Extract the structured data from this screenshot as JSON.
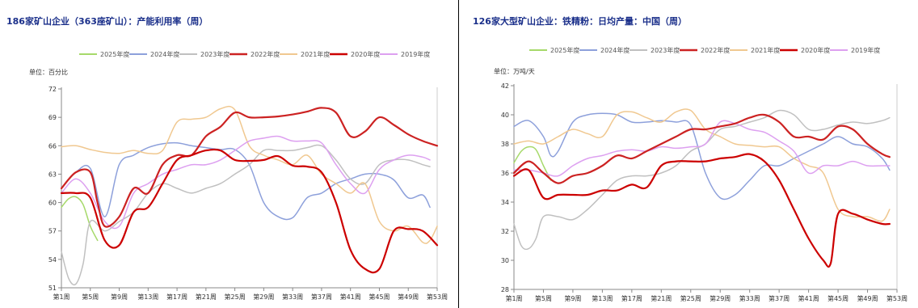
{
  "chart_data": [
    {
      "type": "line",
      "title": "186家矿山企业（363座矿山）：产能利用率（周）",
      "unit": "单位：百分比",
      "ylim": [
        51,
        72
      ],
      "yticks": [
        51,
        54,
        57,
        60,
        63,
        66,
        69,
        72
      ],
      "xlim": [
        1,
        53
      ],
      "xtick_values": [
        1,
        5,
        9,
        13,
        17,
        21,
        25,
        29,
        33,
        37,
        41,
        45,
        49,
        53
      ],
      "xtick_labels": [
        "第1周",
        "第5周",
        "第9周",
        "第13周",
        "第17周",
        "第21周",
        "第25周",
        "第29周",
        "第33周",
        "第37周",
        "第41周",
        "第45周",
        "第49周",
        "第53周"
      ],
      "legend_position": "top",
      "series": [
        {
          "name": "2025年度",
          "color": "#a6d96a",
          "x": [
            1,
            2,
            3,
            4,
            5,
            6
          ],
          "y": [
            59.5,
            60.4,
            60.6,
            59.8,
            57.5,
            56.0
          ]
        },
        {
          "name": "2024年度",
          "color": "#8da0db",
          "x": [
            1,
            3,
            5,
            7,
            9,
            11,
            13,
            15,
            17,
            19,
            21,
            23,
            25,
            27,
            29,
            31,
            33,
            35,
            37,
            39,
            41,
            43,
            45,
            47,
            49,
            51,
            52
          ],
          "y": [
            61.5,
            63.2,
            63.6,
            58.5,
            64.0,
            65.0,
            65.8,
            66.2,
            66.3,
            66.0,
            65.8,
            65.6,
            65.6,
            64.0,
            60.0,
            58.5,
            58.4,
            60.5,
            61.0,
            62.0,
            62.5,
            63.0,
            63.0,
            62.4,
            60.5,
            60.8,
            59.5
          ]
        },
        {
          "name": "2023年度",
          "color": "#c0c0c0",
          "x": [
            1,
            2,
            3,
            4,
            5,
            7,
            9,
            11,
            13,
            15,
            17,
            19,
            21,
            23,
            25,
            27,
            29,
            31,
            33,
            35,
            37,
            39,
            41,
            43,
            45,
            47,
            49,
            51,
            52
          ],
          "y": [
            54.8,
            52.0,
            51.4,
            53.5,
            58.0,
            57.0,
            58.0,
            59.0,
            61.0,
            62.0,
            61.5,
            61.0,
            61.5,
            62.0,
            63.0,
            64.0,
            65.5,
            65.5,
            65.5,
            65.8,
            66.0,
            64.5,
            62.5,
            62.0,
            64.0,
            64.5,
            64.5,
            64.0,
            63.8
          ]
        },
        {
          "name": "2022年度",
          "color": "#cc2222",
          "x": [
            1,
            3,
            5,
            6,
            7,
            9,
            11,
            13,
            15,
            17,
            19,
            21,
            23,
            25,
            27,
            29,
            31,
            33,
            35,
            37,
            39,
            41,
            43,
            45,
            47,
            49,
            51,
            53
          ],
          "y": [
            61.5,
            63.2,
            63.2,
            60.0,
            57.5,
            58.5,
            61.5,
            61.0,
            64.0,
            65.0,
            65.0,
            67.0,
            68.0,
            69.5,
            69.0,
            69.0,
            69.1,
            69.3,
            69.6,
            70.0,
            69.5,
            67.0,
            67.5,
            69.0,
            68.2,
            67.2,
            66.5,
            66.0
          ]
        },
        {
          "name": "2021年度",
          "color": "#f0c890",
          "x": [
            1,
            3,
            5,
            7,
            9,
            11,
            13,
            15,
            17,
            19,
            21,
            23,
            25,
            27,
            29,
            31,
            33,
            35,
            37,
            39,
            41,
            43,
            45,
            47,
            49,
            51,
            52,
            53
          ],
          "y": [
            65.9,
            66.0,
            65.6,
            65.3,
            65.2,
            65.5,
            65.2,
            65.5,
            68.5,
            68.8,
            69.0,
            69.9,
            69.8,
            66.0,
            65.0,
            64.5,
            64.0,
            65.0,
            63.0,
            62.0,
            61.0,
            62.0,
            58.0,
            57.0,
            57.5,
            55.8,
            56.0,
            57.5
          ]
        },
        {
          "name": "2020年度",
          "color": "#cc0000",
          "x": [
            1,
            3,
            5,
            7,
            9,
            11,
            13,
            15,
            17,
            19,
            21,
            23,
            25,
            27,
            29,
            31,
            33,
            35,
            37,
            39,
            41,
            43,
            45,
            47,
            49,
            51,
            53
          ],
          "y": [
            61.0,
            61.0,
            60.5,
            56.0,
            55.5,
            59.0,
            59.5,
            62.0,
            64.5,
            65.0,
            65.5,
            65.5,
            64.5,
            64.4,
            64.5,
            64.9,
            63.9,
            63.8,
            63.2,
            60.0,
            55.0,
            53.0,
            53.0,
            57.0,
            57.2,
            57.0,
            55.5
          ]
        },
        {
          "name": "2019年度",
          "color": "#dda0f0",
          "x": [
            1,
            3,
            5,
            7,
            9,
            11,
            13,
            15,
            17,
            19,
            21,
            23,
            25,
            27,
            29,
            31,
            33,
            35,
            37,
            39,
            41,
            43,
            45,
            47,
            49,
            51,
            52
          ],
          "y": [
            61.0,
            62.5,
            61.0,
            58.0,
            57.5,
            61.0,
            62.0,
            63.0,
            63.5,
            64.0,
            64.0,
            64.5,
            65.5,
            66.5,
            66.8,
            67.0,
            66.5,
            66.5,
            66.3,
            64.0,
            62.0,
            61.0,
            63.5,
            64.5,
            65.0,
            64.8,
            64.5
          ]
        }
      ]
    },
    {
      "type": "line",
      "title": "126家大型矿山企业：铁精粉：日均产量：中国（周）",
      "unit": "单位：万吨/天",
      "ylim": [
        28,
        42
      ],
      "yticks": [
        28,
        30,
        32,
        34,
        36,
        38,
        40,
        42
      ],
      "xlim": [
        1,
        53
      ],
      "xtick_values": [
        1,
        5,
        9,
        13,
        17,
        21,
        25,
        29,
        33,
        37,
        41,
        45,
        49,
        53
      ],
      "xtick_labels": [
        "第1周",
        "第5周",
        "第9周",
        "第13周",
        "第17周",
        "第21周",
        "第25周",
        "第29周",
        "第33周",
        "第37周",
        "第41周",
        "第45周",
        "第49周",
        "第53周"
      ],
      "legend_position": "top",
      "series": [
        {
          "name": "2025年度",
          "color": "#a6d96a",
          "x": [
            1,
            2,
            3,
            4,
            5,
            6
          ],
          "y": [
            36.7,
            37.5,
            37.8,
            37.6,
            36.5,
            35.5
          ]
        },
        {
          "name": "2024年度",
          "color": "#8da0db",
          "x": [
            1,
            3,
            5,
            6,
            7,
            9,
            11,
            13,
            15,
            17,
            19,
            21,
            23,
            25,
            27,
            29,
            31,
            33,
            35,
            37,
            39,
            41,
            43,
            45,
            47,
            49,
            51,
            52
          ],
          "y": [
            39.2,
            39.6,
            38.5,
            37.2,
            37.5,
            39.5,
            40.0,
            40.1,
            40.0,
            39.5,
            39.5,
            39.6,
            39.5,
            39.3,
            36.0,
            34.3,
            34.5,
            35.5,
            36.5,
            36.5,
            37.0,
            37.5,
            38.0,
            38.5,
            38.0,
            37.8,
            37.0,
            36.2
          ]
        },
        {
          "name": "2023年度",
          "color": "#c0c0c0",
          "x": [
            1,
            2,
            3,
            4,
            5,
            7,
            9,
            11,
            13,
            15,
            17,
            19,
            21,
            23,
            25,
            27,
            29,
            31,
            33,
            35,
            37,
            39,
            41,
            43,
            45,
            47,
            49,
            51,
            52
          ],
          "y": [
            32.5,
            31.0,
            30.8,
            31.5,
            33.0,
            33.0,
            32.8,
            33.5,
            34.5,
            35.5,
            35.8,
            35.8,
            36.0,
            36.5,
            37.5,
            38.0,
            39.0,
            39.2,
            39.5,
            39.8,
            40.3,
            40.0,
            39.0,
            39.0,
            39.3,
            39.5,
            39.4,
            39.6,
            39.8
          ]
        },
        {
          "name": "2022年度",
          "color": "#cc2222",
          "x": [
            1,
            3,
            5,
            7,
            9,
            11,
            13,
            15,
            17,
            19,
            21,
            23,
            25,
            27,
            29,
            31,
            33,
            35,
            37,
            39,
            41,
            43,
            45,
            47,
            49,
            51,
            52
          ],
          "y": [
            36.0,
            36.8,
            36.0,
            35.3,
            35.8,
            36.0,
            36.5,
            37.2,
            37.0,
            37.5,
            38.0,
            38.5,
            39.0,
            39.0,
            39.2,
            39.4,
            39.8,
            40.0,
            39.5,
            38.5,
            38.5,
            38.3,
            39.2,
            39.0,
            38.0,
            37.3,
            37.1
          ]
        },
        {
          "name": "2021年度",
          "color": "#f0c890",
          "x": [
            1,
            3,
            5,
            7,
            9,
            11,
            13,
            15,
            17,
            19,
            21,
            23,
            25,
            27,
            29,
            31,
            33,
            35,
            37,
            39,
            41,
            43,
            45,
            47,
            49,
            51,
            52
          ],
          "y": [
            38.0,
            38.2,
            38.0,
            38.5,
            39.0,
            38.7,
            38.5,
            40.0,
            40.2,
            39.8,
            39.5,
            40.2,
            40.3,
            39.0,
            38.5,
            38.0,
            37.9,
            37.8,
            37.8,
            37.0,
            36.5,
            36.0,
            33.5,
            33.0,
            33.0,
            32.7,
            33.5
          ]
        },
        {
          "name": "2020年度",
          "color": "#cc0000",
          "x": [
            1,
            3,
            5,
            7,
            9,
            11,
            13,
            15,
            17,
            19,
            21,
            23,
            25,
            27,
            29,
            31,
            33,
            35,
            37,
            39,
            41,
            43,
            44,
            45,
            47,
            49,
            51,
            52
          ],
          "y": [
            35.8,
            36.2,
            34.3,
            34.5,
            34.5,
            34.5,
            34.8,
            34.8,
            35.2,
            35.0,
            36.5,
            36.8,
            36.8,
            36.8,
            37.0,
            37.1,
            37.3,
            36.8,
            35.5,
            33.5,
            31.5,
            30.0,
            29.8,
            33.2,
            33.2,
            32.8,
            32.5,
            32.5
          ]
        },
        {
          "name": "2019年度",
          "color": "#dda0f0",
          "x": [
            1,
            3,
            5,
            7,
            9,
            11,
            13,
            15,
            17,
            19,
            21,
            23,
            25,
            27,
            29,
            31,
            33,
            35,
            37,
            39,
            41,
            43,
            45,
            47,
            49,
            51,
            52
          ],
          "y": [
            36.2,
            36.2,
            36.0,
            35.8,
            36.5,
            37.0,
            37.2,
            37.5,
            37.6,
            37.5,
            37.8,
            37.7,
            37.8,
            38.0,
            39.5,
            39.4,
            39.0,
            38.8,
            38.2,
            37.5,
            36.0,
            36.5,
            36.5,
            36.8,
            36.5,
            36.5,
            36.5
          ]
        }
      ]
    }
  ]
}
